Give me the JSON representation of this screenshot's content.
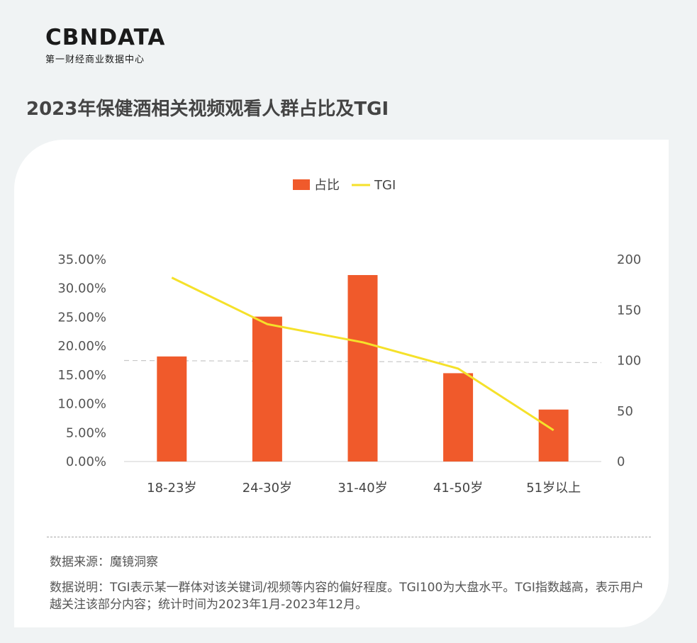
{
  "brand": {
    "logo_text": "CBNDATA",
    "logo_sub": "第一财经商业数据中心"
  },
  "page_title": "2023年保健酒相关视频观看人群占比及TGI",
  "chart_data": {
    "type": "bar",
    "title": "",
    "categories": [
      "18-23岁",
      "24-30岁",
      "31-40岁",
      "41-50岁",
      "51岁以上"
    ],
    "series": [
      {
        "name": "占比",
        "type": "bar",
        "axis": "left",
        "color": "#f05a2b",
        "values": [
          18.2,
          25.1,
          32.3,
          15.3,
          9.0
        ]
      },
      {
        "name": "TGI",
        "type": "line",
        "axis": "right",
        "color": "#f5e12a",
        "values": [
          182,
          136,
          118,
          92,
          31
        ]
      }
    ],
    "y_left": {
      "ticks": [
        "0.00%",
        "5.00%",
        "10.00%",
        "15.00%",
        "20.00%",
        "25.00%",
        "30.00%",
        "35.00%"
      ],
      "lim": [
        0,
        35
      ]
    },
    "y_right": {
      "ticks": [
        "0",
        "50",
        "100",
        "150",
        "200"
      ],
      "lim": [
        0,
        200
      ]
    },
    "reference_line": {
      "value": 100,
      "axis": "right",
      "style": "dashed"
    },
    "legend": {
      "position": "top-center",
      "entries": [
        "占比",
        "TGI"
      ]
    }
  },
  "footer": {
    "source": "数据来源：魔镜洞察",
    "description": "数据说明：TGI表示某一群体对该关键词/视频等内容的偏好程度。TGI100为大盘水平。TGI指数越高，表示用户越关注该部分内容；统计时间为2023年1月-2023年12月。"
  },
  "colors": {
    "background": "#f0f3f4",
    "card": "#ffffff",
    "bar": "#f05a2b",
    "line": "#f5e12a"
  }
}
